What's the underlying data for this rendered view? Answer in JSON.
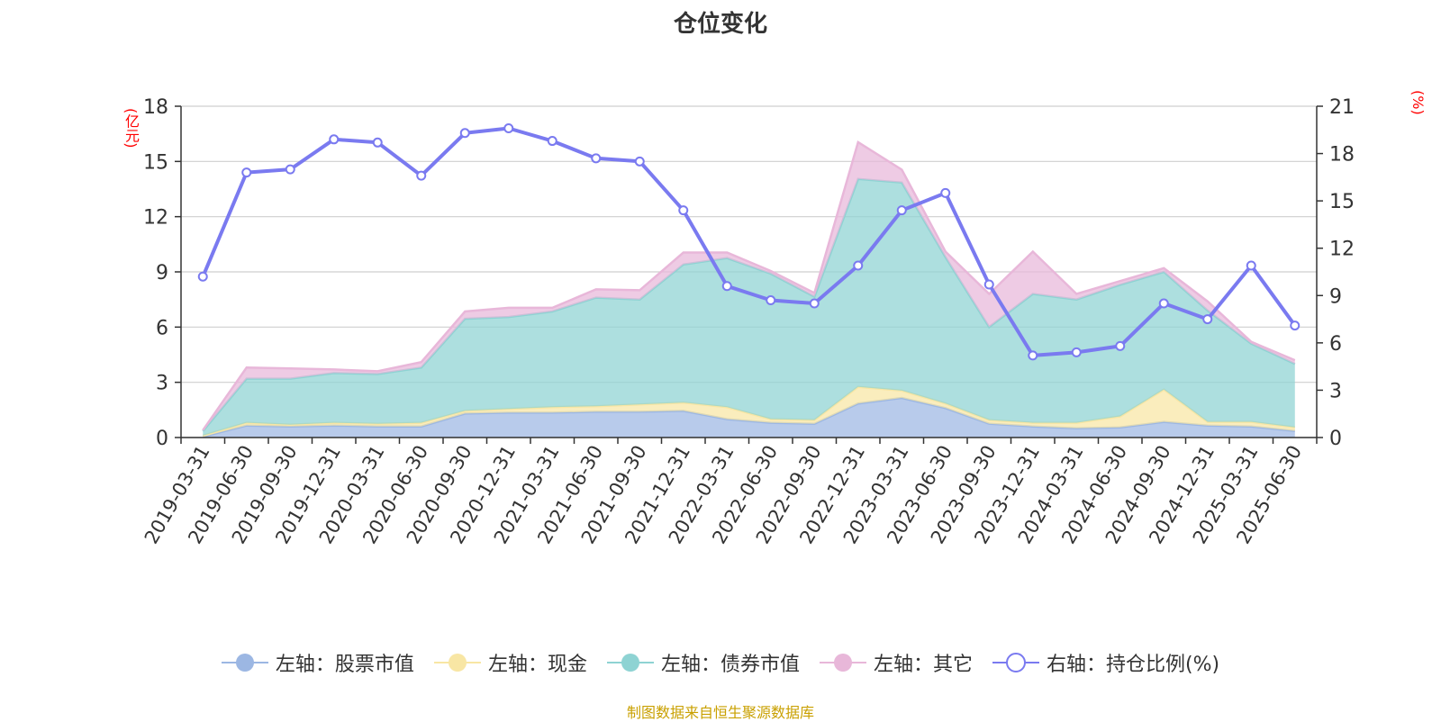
{
  "title": "仓位变化",
  "units": {
    "left": "(亿元)",
    "right": "(%)"
  },
  "source": "制图数据来自恒生聚源数据库",
  "legend": [
    {
      "label": "左轴：股票市值",
      "color": "#9cb7e3",
      "kind": "area"
    },
    {
      "label": "左轴：现金",
      "color": "#f8e6a4",
      "kind": "area"
    },
    {
      "label": "左轴：债券市值",
      "color": "#8ed3d3",
      "kind": "area"
    },
    {
      "label": "左轴：其它",
      "color": "#e8b7d9",
      "kind": "area"
    },
    {
      "label": "右轴：持仓比例(%)",
      "color": "#7a7af0",
      "kind": "line"
    }
  ],
  "chart_data": {
    "type": "area",
    "categories": [
      "2019-03-31",
      "2019-06-30",
      "2019-09-30",
      "2019-12-31",
      "2020-03-31",
      "2020-06-30",
      "2020-09-30",
      "2020-12-31",
      "2021-03-31",
      "2021-06-30",
      "2021-09-30",
      "2021-12-31",
      "2022-03-31",
      "2022-06-30",
      "2022-09-30",
      "2022-12-31",
      "2023-03-31",
      "2023-06-30",
      "2023-09-30",
      "2023-12-31",
      "2024-03-31",
      "2024-06-30",
      "2024-09-30",
      "2024-12-31",
      "2025-03-31",
      "2025-06-30"
    ],
    "series": [
      {
        "name": "左轴：股票市值",
        "axis": "left",
        "stacked": true,
        "color": "#9cb7e3",
        "values": [
          0.05,
          0.65,
          0.6,
          0.65,
          0.6,
          0.6,
          1.3,
          1.35,
          1.35,
          1.4,
          1.4,
          1.45,
          1.0,
          0.8,
          0.75,
          1.85,
          2.15,
          1.6,
          0.75,
          0.6,
          0.5,
          0.55,
          0.85,
          0.65,
          0.6,
          0.35
        ]
      },
      {
        "name": "左轴：现金",
        "axis": "left",
        "stacked": true,
        "color": "#f8e6a4",
        "values": [
          0.05,
          0.15,
          0.1,
          0.15,
          0.15,
          0.2,
          0.15,
          0.2,
          0.3,
          0.3,
          0.4,
          0.45,
          0.65,
          0.2,
          0.2,
          0.9,
          0.4,
          0.25,
          0.2,
          0.2,
          0.3,
          0.6,
          1.75,
          0.2,
          0.25,
          0.2
        ]
      },
      {
        "name": "左轴：债券市值",
        "axis": "left",
        "stacked": true,
        "color": "#8ed3d3",
        "values": [
          0.25,
          2.4,
          2.5,
          2.7,
          2.7,
          3.0,
          5.0,
          5.0,
          5.2,
          5.9,
          5.7,
          7.5,
          8.1,
          7.9,
          6.7,
          11.3,
          11.3,
          7.95,
          5.05,
          7.0,
          6.7,
          7.15,
          6.4,
          6.05,
          4.25,
          3.45
        ]
      },
      {
        "name": "左轴：其它",
        "axis": "left",
        "stacked": true,
        "color": "#e8b7d9",
        "values": [
          0.05,
          0.6,
          0.55,
          0.2,
          0.15,
          0.3,
          0.4,
          0.5,
          0.2,
          0.45,
          0.5,
          0.65,
          0.3,
          0.15,
          0.2,
          2.0,
          0.7,
          0.3,
          1.8,
          2.3,
          0.3,
          0.2,
          0.2,
          0.5,
          0.1,
          0.2
        ]
      },
      {
        "name": "右轴：持仓比例(%)",
        "axis": "right",
        "stacked": false,
        "color": "#7a7af0",
        "values": [
          10.2,
          16.8,
          17.0,
          18.9,
          18.7,
          16.6,
          19.3,
          19.6,
          18.8,
          17.7,
          17.5,
          14.4,
          9.6,
          8.7,
          8.5,
          10.9,
          14.4,
          15.5,
          9.7,
          5.2,
          5.4,
          5.8,
          8.5,
          7.5,
          10.9,
          7.1
        ]
      }
    ],
    "ylim_left": [
      0,
      18
    ],
    "yticks_left": [
      0,
      3,
      6,
      9,
      12,
      15,
      18
    ],
    "ylim_right": [
      0,
      21
    ],
    "yticks_right": [
      0,
      3,
      6,
      9,
      12,
      15,
      18,
      21
    ],
    "grid": true,
    "legend_position": "bottom"
  }
}
